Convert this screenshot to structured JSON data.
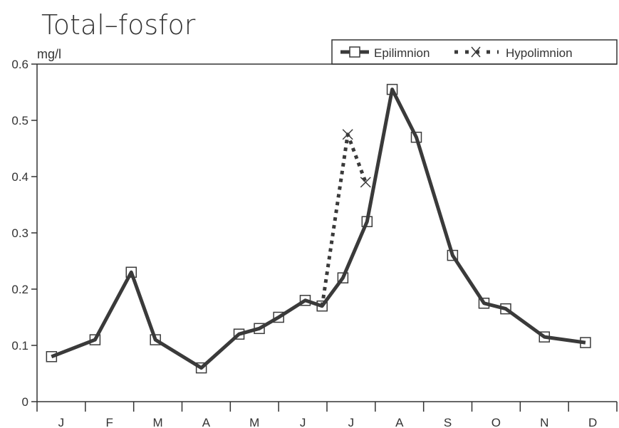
{
  "chart_data": {
    "type": "line",
    "title": "Total–fosfor",
    "ylabel": "mg/l",
    "xlabel": "",
    "ylim": [
      0,
      0.6
    ],
    "yticks": [
      "0",
      "0.1",
      "0.2",
      "0.3",
      "0.4",
      "0.5",
      "0.6"
    ],
    "categories": [
      "J",
      "F",
      "M",
      "A",
      "M",
      "J",
      "J",
      "A",
      "S",
      "O",
      "N",
      "D"
    ],
    "legend_position": "top-right",
    "grid": false,
    "series": [
      {
        "name": "Epilimnion",
        "style": "solid",
        "marker": "square",
        "color": "#3a3a3a",
        "points": [
          {
            "x": 0.3,
            "y": 0.08
          },
          {
            "x": 1.2,
            "y": 0.11
          },
          {
            "x": 1.95,
            "y": 0.23
          },
          {
            "x": 2.45,
            "y": 0.11
          },
          {
            "x": 3.4,
            "y": 0.06
          },
          {
            "x": 4.18,
            "y": 0.12
          },
          {
            "x": 4.6,
            "y": 0.13
          },
          {
            "x": 5.0,
            "y": 0.15
          },
          {
            "x": 5.55,
            "y": 0.18
          },
          {
            "x": 5.9,
            "y": 0.17
          },
          {
            "x": 6.33,
            "y": 0.22
          },
          {
            "x": 6.83,
            "y": 0.32
          },
          {
            "x": 7.35,
            "y": 0.555
          },
          {
            "x": 7.85,
            "y": 0.47
          },
          {
            "x": 8.6,
            "y": 0.26
          },
          {
            "x": 9.25,
            "y": 0.175
          },
          {
            "x": 9.7,
            "y": 0.165
          },
          {
            "x": 10.5,
            "y": 0.115
          },
          {
            "x": 11.35,
            "y": 0.105
          }
        ]
      },
      {
        "name": "Hypolimnion",
        "style": "dotted",
        "marker": "x",
        "color": "#3a3a3a",
        "points": [
          {
            "x": 5.9,
            "y": 0.17
          },
          {
            "x": 6.43,
            "y": 0.475
          },
          {
            "x": 6.8,
            "y": 0.39
          }
        ]
      }
    ]
  }
}
